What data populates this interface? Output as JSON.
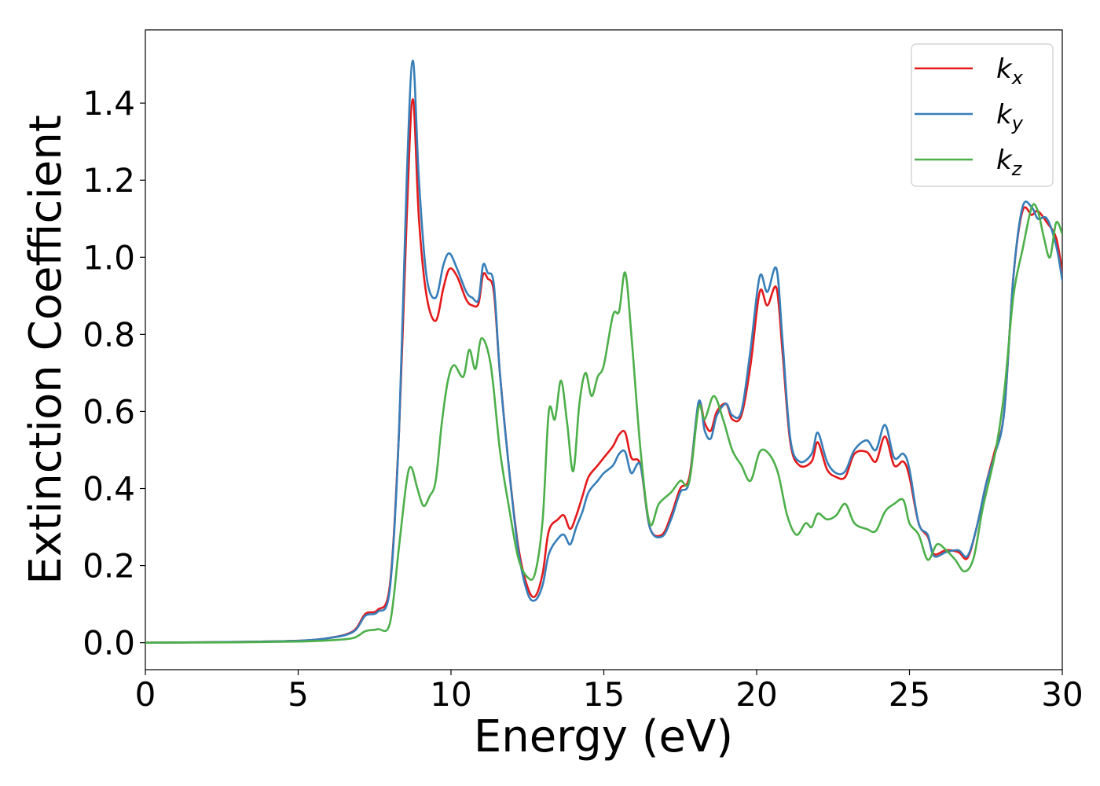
{
  "chart_data": {
    "type": "line",
    "title": "",
    "xlabel": "Energy (eV)",
    "ylabel": "Extinction Coefficient",
    "xlim": [
      0,
      30
    ],
    "ylim": [
      -0.07,
      1.59
    ],
    "xticks": [
      0,
      5,
      10,
      15,
      20,
      25,
      30
    ],
    "yticks": [
      0.0,
      0.2,
      0.4,
      0.6,
      0.8,
      1.0,
      1.2,
      1.4
    ],
    "xtick_labels": [
      "0",
      "5",
      "10",
      "15",
      "20",
      "25",
      "30"
    ],
    "ytick_labels": [
      "0.0",
      "0.2",
      "0.4",
      "0.6",
      "0.8",
      "1.0",
      "1.2",
      "1.4"
    ],
    "grid": false,
    "legend_position": "top-right",
    "series": [
      {
        "name": "k_x",
        "label_main": "k",
        "label_sub": "x",
        "color": "#e41a1c",
        "points": [
          [
            0,
            0
          ],
          [
            3,
            0.002
          ],
          [
            5,
            0.005
          ],
          [
            6,
            0.012
          ],
          [
            6.8,
            0.03
          ],
          [
            7.2,
            0.075
          ],
          [
            7.6,
            0.085
          ],
          [
            8,
            0.15
          ],
          [
            8.3,
            0.55
          ],
          [
            8.55,
            1.1
          ],
          [
            8.75,
            1.41
          ],
          [
            8.95,
            1.1
          ],
          [
            9.2,
            0.9
          ],
          [
            9.5,
            0.835
          ],
          [
            9.75,
            0.92
          ],
          [
            9.95,
            0.97
          ],
          [
            10.2,
            0.95
          ],
          [
            10.5,
            0.89
          ],
          [
            10.7,
            0.875
          ],
          [
            10.9,
            0.88
          ],
          [
            11.05,
            0.955
          ],
          [
            11.2,
            0.945
          ],
          [
            11.4,
            0.91
          ],
          [
            11.6,
            0.7
          ],
          [
            11.9,
            0.45
          ],
          [
            12.2,
            0.25
          ],
          [
            12.5,
            0.145
          ],
          [
            12.75,
            0.12
          ],
          [
            13,
            0.18
          ],
          [
            13.2,
            0.29
          ],
          [
            13.5,
            0.32
          ],
          [
            13.7,
            0.33
          ],
          [
            13.9,
            0.295
          ],
          [
            14.1,
            0.33
          ],
          [
            14.3,
            0.38
          ],
          [
            14.5,
            0.43
          ],
          [
            14.8,
            0.46
          ],
          [
            15,
            0.48
          ],
          [
            15.3,
            0.51
          ],
          [
            15.5,
            0.54
          ],
          [
            15.7,
            0.545
          ],
          [
            15.9,
            0.48
          ],
          [
            16.2,
            0.46
          ],
          [
            16.5,
            0.3
          ],
          [
            16.9,
            0.28
          ],
          [
            17.2,
            0.33
          ],
          [
            17.5,
            0.4
          ],
          [
            17.8,
            0.43
          ],
          [
            18.1,
            0.62
          ],
          [
            18.3,
            0.57
          ],
          [
            18.5,
            0.55
          ],
          [
            18.7,
            0.6
          ],
          [
            19,
            0.62
          ],
          [
            19.2,
            0.58
          ],
          [
            19.5,
            0.59
          ],
          [
            19.8,
            0.72
          ],
          [
            20.1,
            0.91
          ],
          [
            20.35,
            0.875
          ],
          [
            20.65,
            0.92
          ],
          [
            20.85,
            0.75
          ],
          [
            21.1,
            0.52
          ],
          [
            21.4,
            0.46
          ],
          [
            21.8,
            0.47
          ],
          [
            22,
            0.52
          ],
          [
            22.3,
            0.45
          ],
          [
            22.6,
            0.43
          ],
          [
            22.9,
            0.43
          ],
          [
            23.2,
            0.49
          ],
          [
            23.6,
            0.495
          ],
          [
            23.9,
            0.47
          ],
          [
            24.2,
            0.535
          ],
          [
            24.5,
            0.46
          ],
          [
            24.8,
            0.47
          ],
          [
            25,
            0.43
          ],
          [
            25.3,
            0.31
          ],
          [
            25.6,
            0.275
          ],
          [
            25.8,
            0.23
          ],
          [
            26.2,
            0.24
          ],
          [
            26.6,
            0.235
          ],
          [
            26.9,
            0.22
          ],
          [
            27.2,
            0.3
          ],
          [
            27.5,
            0.41
          ],
          [
            27.8,
            0.5
          ],
          [
            28.1,
            0.6
          ],
          [
            28.4,
            0.95
          ],
          [
            28.7,
            1.12
          ],
          [
            29,
            1.11
          ],
          [
            29.2,
            1.12
          ],
          [
            29.5,
            1.09
          ],
          [
            29.8,
            1.05
          ],
          [
            30,
            0.96
          ]
        ]
      },
      {
        "name": "k_y",
        "label_main": "k",
        "label_sub": "y",
        "color": "#377eb8",
        "points": [
          [
            0,
            0
          ],
          [
            3,
            0.002
          ],
          [
            5,
            0.005
          ],
          [
            6,
            0.012
          ],
          [
            6.8,
            0.028
          ],
          [
            7.2,
            0.07
          ],
          [
            7.6,
            0.08
          ],
          [
            8,
            0.14
          ],
          [
            8.3,
            0.55
          ],
          [
            8.55,
            1.2
          ],
          [
            8.75,
            1.51
          ],
          [
            8.95,
            1.2
          ],
          [
            9.2,
            0.95
          ],
          [
            9.5,
            0.895
          ],
          [
            9.75,
            0.98
          ],
          [
            9.95,
            1.01
          ],
          [
            10.2,
            0.97
          ],
          [
            10.5,
            0.91
          ],
          [
            10.7,
            0.895
          ],
          [
            10.9,
            0.89
          ],
          [
            11.05,
            0.98
          ],
          [
            11.2,
            0.96
          ],
          [
            11.4,
            0.93
          ],
          [
            11.6,
            0.7
          ],
          [
            11.9,
            0.45
          ],
          [
            12.2,
            0.24
          ],
          [
            12.5,
            0.13
          ],
          [
            12.75,
            0.11
          ],
          [
            13,
            0.15
          ],
          [
            13.2,
            0.23
          ],
          [
            13.5,
            0.27
          ],
          [
            13.7,
            0.28
          ],
          [
            13.9,
            0.255
          ],
          [
            14.1,
            0.3
          ],
          [
            14.3,
            0.34
          ],
          [
            14.5,
            0.39
          ],
          [
            14.8,
            0.42
          ],
          [
            15,
            0.44
          ],
          [
            15.3,
            0.46
          ],
          [
            15.5,
            0.49
          ],
          [
            15.7,
            0.495
          ],
          [
            15.9,
            0.44
          ],
          [
            16.2,
            0.46
          ],
          [
            16.5,
            0.3
          ],
          [
            16.9,
            0.275
          ],
          [
            17.2,
            0.32
          ],
          [
            17.5,
            0.39
          ],
          [
            17.8,
            0.42
          ],
          [
            18.1,
            0.625
          ],
          [
            18.3,
            0.55
          ],
          [
            18.5,
            0.53
          ],
          [
            18.7,
            0.59
          ],
          [
            19,
            0.62
          ],
          [
            19.2,
            0.59
          ],
          [
            19.5,
            0.6
          ],
          [
            19.8,
            0.76
          ],
          [
            20.1,
            0.95
          ],
          [
            20.35,
            0.91
          ],
          [
            20.65,
            0.97
          ],
          [
            20.85,
            0.78
          ],
          [
            21.1,
            0.53
          ],
          [
            21.4,
            0.47
          ],
          [
            21.8,
            0.49
          ],
          [
            22,
            0.545
          ],
          [
            22.3,
            0.47
          ],
          [
            22.6,
            0.44
          ],
          [
            22.9,
            0.445
          ],
          [
            23.2,
            0.5
          ],
          [
            23.6,
            0.525
          ],
          [
            23.9,
            0.5
          ],
          [
            24.2,
            0.565
          ],
          [
            24.5,
            0.48
          ],
          [
            24.8,
            0.49
          ],
          [
            25,
            0.45
          ],
          [
            25.3,
            0.31
          ],
          [
            25.6,
            0.28
          ],
          [
            25.8,
            0.225
          ],
          [
            26.2,
            0.235
          ],
          [
            26.6,
            0.24
          ],
          [
            26.9,
            0.225
          ],
          [
            27.2,
            0.3
          ],
          [
            27.5,
            0.41
          ],
          [
            27.8,
            0.49
          ],
          [
            28.1,
            0.6
          ],
          [
            28.4,
            0.95
          ],
          [
            28.7,
            1.13
          ],
          [
            29,
            1.13
          ],
          [
            29.2,
            1.1
          ],
          [
            29.5,
            1.1
          ],
          [
            29.8,
            1.03
          ],
          [
            30,
            0.94
          ]
        ]
      },
      {
        "name": "k_z",
        "label_main": "k",
        "label_sub": "z",
        "color": "#4daf4a",
        "points": [
          [
            0,
            0
          ],
          [
            3,
            0.001
          ],
          [
            5,
            0.003
          ],
          [
            6,
            0.006
          ],
          [
            6.8,
            0.012
          ],
          [
            7.2,
            0.03
          ],
          [
            7.6,
            0.035
          ],
          [
            8,
            0.05
          ],
          [
            8.3,
            0.25
          ],
          [
            8.55,
            0.42
          ],
          [
            8.7,
            0.455
          ],
          [
            8.9,
            0.4
          ],
          [
            9.1,
            0.355
          ],
          [
            9.3,
            0.38
          ],
          [
            9.5,
            0.42
          ],
          [
            9.7,
            0.57
          ],
          [
            9.9,
            0.68
          ],
          [
            10.1,
            0.72
          ],
          [
            10.4,
            0.69
          ],
          [
            10.6,
            0.76
          ],
          [
            10.8,
            0.71
          ],
          [
            11,
            0.79
          ],
          [
            11.3,
            0.72
          ],
          [
            11.6,
            0.5
          ],
          [
            11.9,
            0.35
          ],
          [
            12.2,
            0.22
          ],
          [
            12.5,
            0.17
          ],
          [
            12.75,
            0.18
          ],
          [
            13,
            0.32
          ],
          [
            13.2,
            0.6
          ],
          [
            13.4,
            0.58
          ],
          [
            13.6,
            0.68
          ],
          [
            13.8,
            0.57
          ],
          [
            14,
            0.445
          ],
          [
            14.2,
            0.62
          ],
          [
            14.4,
            0.7
          ],
          [
            14.6,
            0.64
          ],
          [
            14.8,
            0.69
          ],
          [
            15,
            0.72
          ],
          [
            15.3,
            0.85
          ],
          [
            15.5,
            0.86
          ],
          [
            15.7,
            0.96
          ],
          [
            15.9,
            0.8
          ],
          [
            16.2,
            0.5
          ],
          [
            16.5,
            0.31
          ],
          [
            16.8,
            0.36
          ],
          [
            17.2,
            0.39
          ],
          [
            17.5,
            0.42
          ],
          [
            17.8,
            0.42
          ],
          [
            18.1,
            0.61
          ],
          [
            18.3,
            0.58
          ],
          [
            18.6,
            0.64
          ],
          [
            18.9,
            0.58
          ],
          [
            19.2,
            0.5
          ],
          [
            19.5,
            0.46
          ],
          [
            19.8,
            0.42
          ],
          [
            20.1,
            0.495
          ],
          [
            20.4,
            0.49
          ],
          [
            20.7,
            0.44
          ],
          [
            21,
            0.33
          ],
          [
            21.3,
            0.28
          ],
          [
            21.6,
            0.31
          ],
          [
            21.8,
            0.3
          ],
          [
            22,
            0.335
          ],
          [
            22.3,
            0.32
          ],
          [
            22.6,
            0.33
          ],
          [
            22.9,
            0.36
          ],
          [
            23.2,
            0.31
          ],
          [
            23.6,
            0.295
          ],
          [
            23.9,
            0.29
          ],
          [
            24.2,
            0.34
          ],
          [
            24.5,
            0.36
          ],
          [
            24.8,
            0.37
          ],
          [
            25,
            0.31
          ],
          [
            25.3,
            0.28
          ],
          [
            25.6,
            0.215
          ],
          [
            25.9,
            0.255
          ],
          [
            26.2,
            0.24
          ],
          [
            26.5,
            0.215
          ],
          [
            26.8,
            0.185
          ],
          [
            27.1,
            0.22
          ],
          [
            27.4,
            0.35
          ],
          [
            27.8,
            0.49
          ],
          [
            28.1,
            0.65
          ],
          [
            28.4,
            0.9
          ],
          [
            28.7,
            1.02
          ],
          [
            29,
            1.13
          ],
          [
            29.2,
            1.12
          ],
          [
            29.4,
            1.05
          ],
          [
            29.6,
            1.0
          ],
          [
            29.8,
            1.09
          ],
          [
            30,
            1.06
          ]
        ]
      }
    ]
  }
}
